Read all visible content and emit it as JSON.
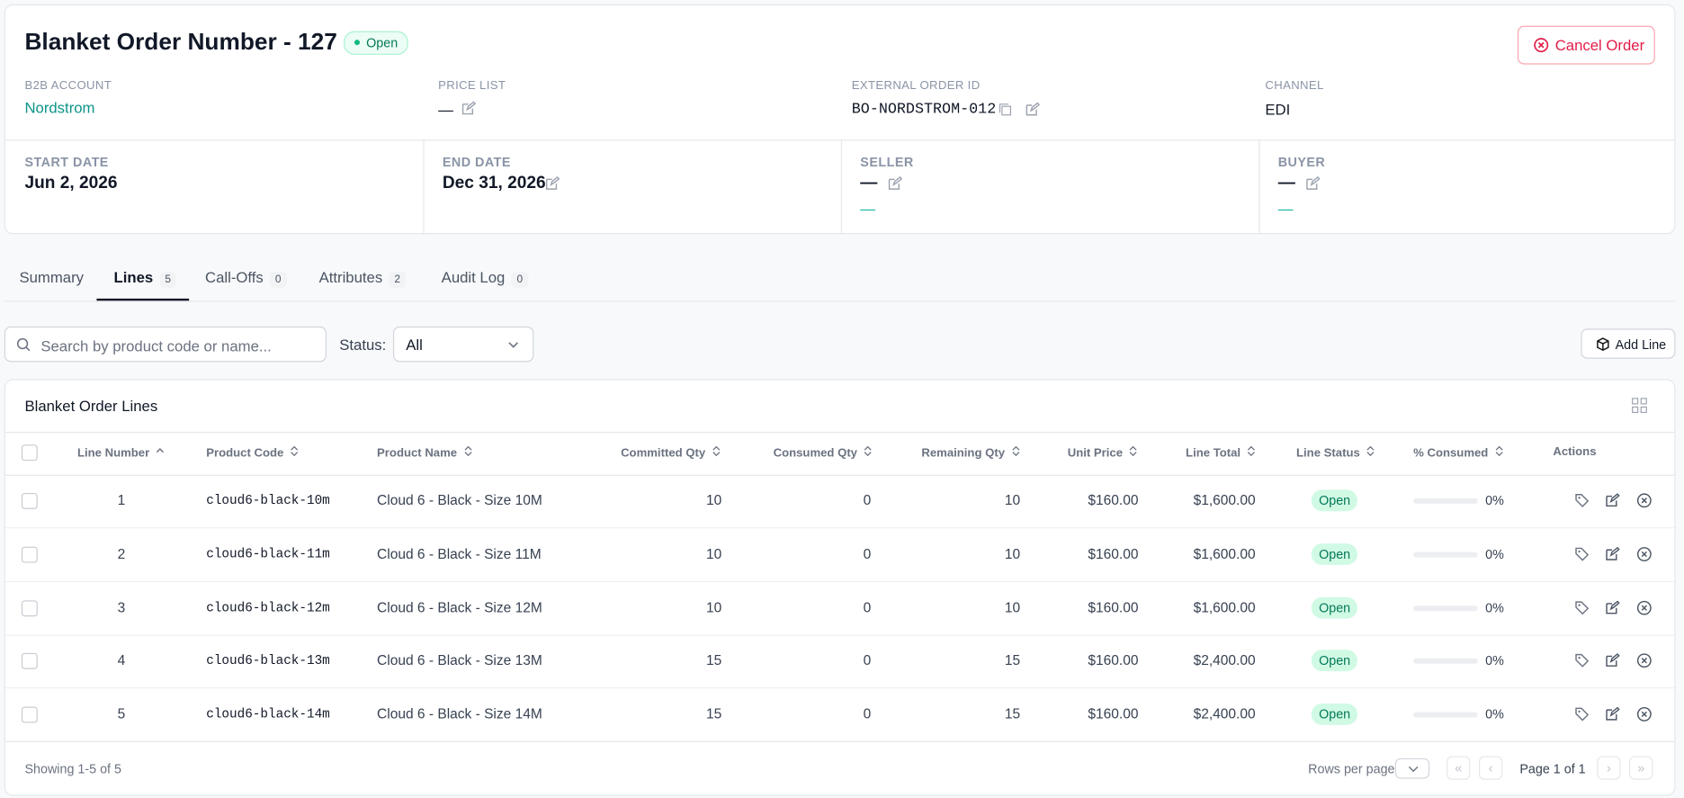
{
  "header": {
    "title": "Blanket Order Number - 127",
    "status": "Open",
    "cancel_button": "Cancel Order"
  },
  "fields": [
    {
      "label": "B2B ACCOUNT",
      "value": "Nordstrom"
    },
    {
      "label": "PRICE LIST",
      "value": "—"
    },
    {
      "label": "EXTERNAL ORDER ID",
      "value": "BO-NORDSTROM-012"
    },
    {
      "label": "CHANNEL",
      "value": "EDI"
    }
  ],
  "details": [
    {
      "label": "START DATE",
      "value": "Jun 2, 2026"
    },
    {
      "label": "END DATE",
      "value": "Dec 31, 2026"
    },
    {
      "label": "SELLER",
      "value": "—",
      "sub": "—"
    },
    {
      "label": "BUYER",
      "value": "—",
      "sub": "—"
    }
  ],
  "tabs": [
    {
      "label": "Summary"
    },
    {
      "label": "Lines",
      "count": 5
    },
    {
      "label": "Call-Offs",
      "count": 0
    },
    {
      "label": "Attributes",
      "count": 2
    },
    {
      "label": "Audit Log",
      "count": 0
    }
  ],
  "filters": {
    "search_placeholder": "Search by product code or name...",
    "status_label": "Status:",
    "status_value": "All",
    "add_button": "Add Line"
  },
  "table": {
    "title": "Blanket Order Lines",
    "columns": [
      "Line Number",
      "Product Code",
      "Product Name",
      "Committed Qty",
      "Consumed Qty",
      "Remaining Qty",
      "Unit Price",
      "Line Total",
      "Line Status",
      "% Consumed",
      "Actions"
    ],
    "rows": [
      [
        1,
        "cloud6-black-10m",
        "Cloud 6 - Black - Size 10M",
        10,
        0,
        10,
        "$160.00",
        "$1,600.00",
        "Open",
        "0%"
      ],
      [
        2,
        "cloud6-black-11m",
        "Cloud 6 - Black - Size 11M",
        10,
        0,
        10,
        "$160.00",
        "$1,600.00",
        "Open",
        "0%"
      ],
      [
        3,
        "cloud6-black-12m",
        "Cloud 6 - Black - Size 12M",
        10,
        0,
        10,
        "$160.00",
        "$1,600.00",
        "Open",
        "0%"
      ],
      [
        4,
        "cloud6-black-13m",
        "Cloud 6 - Black - Size 13M",
        15,
        0,
        15,
        "$160.00",
        "$2,400.00",
        "Open",
        "0%"
      ],
      [
        5,
        "cloud6-black-14m",
        "Cloud 6 - Black - Size 14M",
        15,
        0,
        15,
        "$160.00",
        "$2,400.00",
        "Open",
        "0%"
      ]
    ]
  },
  "footer": {
    "showing": "Showing 1-5 of 5",
    "rows_per_page": "Rows per page",
    "page": "Page 1 of 1"
  }
}
